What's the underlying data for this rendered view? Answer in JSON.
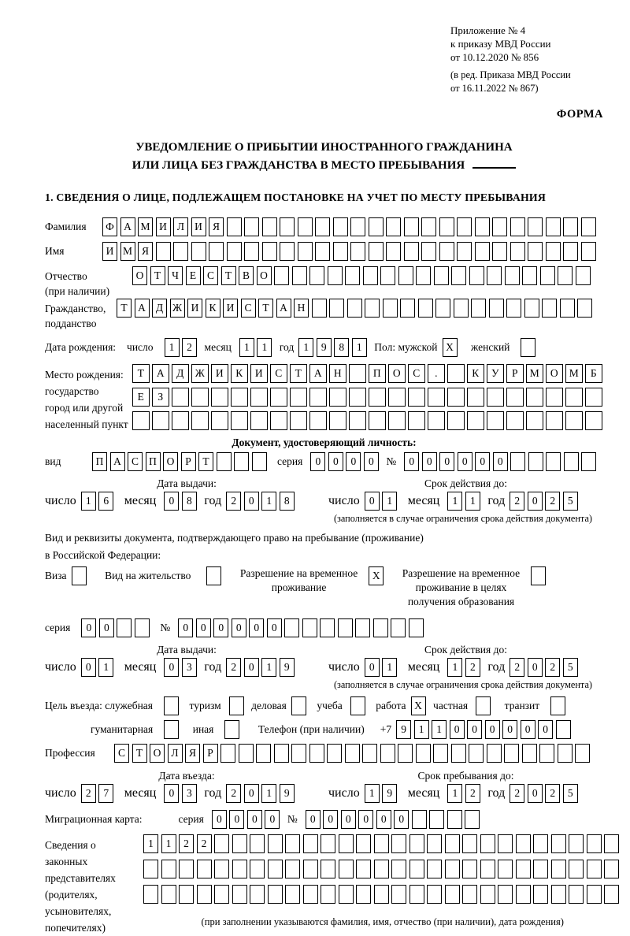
{
  "header": {
    "ref_lines": [
      "Приложение № 4",
      "к приказу МВД России",
      "от 10.12.2020 № 856"
    ],
    "ref_sub_lines": [
      "(в ред. Приказа МВД России",
      "от 16.11.2022 № 867)"
    ],
    "form_label": "ФОРМА"
  },
  "title": {
    "line1": "УВЕДОМЛЕНИЕ О ПРИБЫТИИ ИНОСТРАННОГО ГРАЖДАНИНА",
    "line2": "ИЛИ ЛИЦА БЕЗ ГРАЖДАНСТВА В МЕСТО ПРЕБЫВАНИЯ"
  },
  "section1_heading": "1. СВЕДЕНИЯ О ЛИЦЕ, ПОДЛЕЖАЩЕМ ПОСТАНОВКЕ НА УЧЕТ ПО МЕСТУ ПРЕБЫВАНИЯ",
  "labels": {
    "surname": "Фамилия",
    "name": "Имя",
    "patronymic": "Отчество",
    "patronymic_note": "(при наличии)",
    "citizenship1": "Гражданство,",
    "citizenship2": "подданство",
    "birth_date": "Дата рождения:",
    "day": "число",
    "month": "месяц",
    "year": "год",
    "sex": "Пол: мужской",
    "female": "женский",
    "birth_place1": "Место рождения:",
    "birth_place2": "государство",
    "birth_place3": "город или другой",
    "birth_place4": "населенный пункт",
    "identity_doc_heading": "Документ, удостоверяющий личность:",
    "kind": "вид",
    "series": "серия",
    "number": "№",
    "issue_date": "Дата выдачи:",
    "valid_until": "Срок действия до:",
    "valid_note": "(заполняется в случае ограничения срока действия документа)",
    "residence_doc_line1": "Вид и реквизиты документа, подтверждающего право на пребывание (проживание)",
    "residence_doc_line2": "в Российской Федерации:",
    "visa": "Виза",
    "residence_permit": "Вид на жительство",
    "temp_permit_line1": "Разрешение на временное",
    "temp_permit_line2": "проживание",
    "edu_permit_line1": "Разрешение на временное",
    "edu_permit_line2": "проживание в целях",
    "edu_permit_line3": "получения образования",
    "entry_purpose": "Цель въезда: служебная",
    "purpose_tourism": "туризм",
    "purpose_business": "деловая",
    "purpose_study": "учеба",
    "purpose_work": "работа",
    "purpose_private": "частная",
    "purpose_transit": "транзит",
    "purpose_humanitarian": "гуманитарная",
    "purpose_other": "иная",
    "phone": "Телефон (при наличии)",
    "phone_prefix": "+7",
    "profession": "Профессия",
    "entry_date": "Дата въезда:",
    "stay_until": "Срок пребывания до:",
    "migration_card": "Миграционная карта:",
    "legal_rep_line1": "Сведения о",
    "legal_rep_line2": "законных",
    "legal_rep_line3": "представителях",
    "legal_rep_line4": "(родителях,",
    "legal_rep_line5": "усыновителях,",
    "legal_rep_line6": "попечителях)",
    "legal_rep_note": "(при заполнении указываются фамилия, имя, отчество (при наличии), дата рождения)"
  },
  "boxes": {
    "surname": {
      "value": "ФАМИЛИЯ",
      "length": 28
    },
    "name": {
      "value": "ИМЯ",
      "length": 28
    },
    "patronymic": {
      "value": "ОТЧЕСТВО",
      "length": 26
    },
    "citizenship": {
      "value": "ТАДЖИКИСТАН",
      "length": 27
    },
    "birth_day": {
      "value": "12",
      "length": 2
    },
    "birth_month": {
      "value": "11",
      "length": 2
    },
    "birth_year": {
      "value": "1981",
      "length": 4
    },
    "sex_male": {
      "value": "X",
      "length": 1
    },
    "sex_female": {
      "value": "",
      "length": 1
    },
    "birth_place_row1": {
      "value": "ТАДЖИКИСТАН ПОС. КУРМОМБ",
      "length": 24
    },
    "birth_place_row2": {
      "value": "ЕЗ",
      "length": 24
    },
    "birth_place_row3": {
      "value": "",
      "length": 24
    },
    "doc_kind": {
      "value": "ПАСПОРТ",
      "length": 10
    },
    "doc_series": {
      "value": "0000",
      "length": 4
    },
    "doc_number": {
      "value": "000000",
      "length": 11
    },
    "doc_issue_day": {
      "value": "16",
      "length": 2
    },
    "doc_issue_month": {
      "value": "08",
      "length": 2
    },
    "doc_issue_year": {
      "value": "2018",
      "length": 4
    },
    "doc_valid_day": {
      "value": "01",
      "length": 2
    },
    "doc_valid_month": {
      "value": "11",
      "length": 2
    },
    "doc_valid_year": {
      "value": "2025",
      "length": 4
    },
    "visa_cb": {
      "value": "",
      "length": 1
    },
    "residence_permit_cb": {
      "value": "",
      "length": 1
    },
    "temp_permit_cb": {
      "value": "X",
      "length": 1
    },
    "edu_permit_cb": {
      "value": "",
      "length": 1
    },
    "res_series": {
      "value": "00",
      "length": 4
    },
    "res_number": {
      "value": "000000",
      "length": 14
    },
    "res_issue_day": {
      "value": "01",
      "length": 2
    },
    "res_issue_month": {
      "value": "03",
      "length": 2
    },
    "res_issue_year": {
      "value": "2019",
      "length": 4
    },
    "res_valid_day": {
      "value": "01",
      "length": 2
    },
    "res_valid_month": {
      "value": "12",
      "length": 2
    },
    "res_valid_year": {
      "value": "2025",
      "length": 4
    },
    "purpose_official_cb": {
      "value": "",
      "length": 1
    },
    "purpose_tourism_cb": {
      "value": "",
      "length": 1
    },
    "purpose_business_cb": {
      "value": "",
      "length": 1
    },
    "purpose_study_cb": {
      "value": "",
      "length": 1
    },
    "purpose_work_cb": {
      "value": "X",
      "length": 1
    },
    "purpose_private_cb": {
      "value": "",
      "length": 1
    },
    "purpose_transit_cb": {
      "value": "",
      "length": 1
    },
    "purpose_humanitarian_cb": {
      "value": "",
      "length": 1
    },
    "purpose_other_cb": {
      "value": "",
      "length": 1
    },
    "phone_digits": {
      "value": "911000000",
      "length": 10
    },
    "profession": {
      "value": "СТОЛЯР",
      "length": 27
    },
    "entry_day": {
      "value": "27",
      "length": 2
    },
    "entry_month": {
      "value": "03",
      "length": 2
    },
    "entry_year": {
      "value": "2019",
      "length": 4
    },
    "stay_day": {
      "value": "19",
      "length": 2
    },
    "stay_month": {
      "value": "12",
      "length": 2
    },
    "stay_year": {
      "value": "2025",
      "length": 4
    },
    "mig_series": {
      "value": "0000",
      "length": 4
    },
    "mig_number": {
      "value": "000000",
      "length": 10
    },
    "legal_rep_row1": {
      "value": "1122",
      "length": 27
    },
    "legal_rep_row2": {
      "value": "",
      "length": 27
    },
    "legal_rep_row3": {
      "value": "",
      "length": 27
    }
  }
}
